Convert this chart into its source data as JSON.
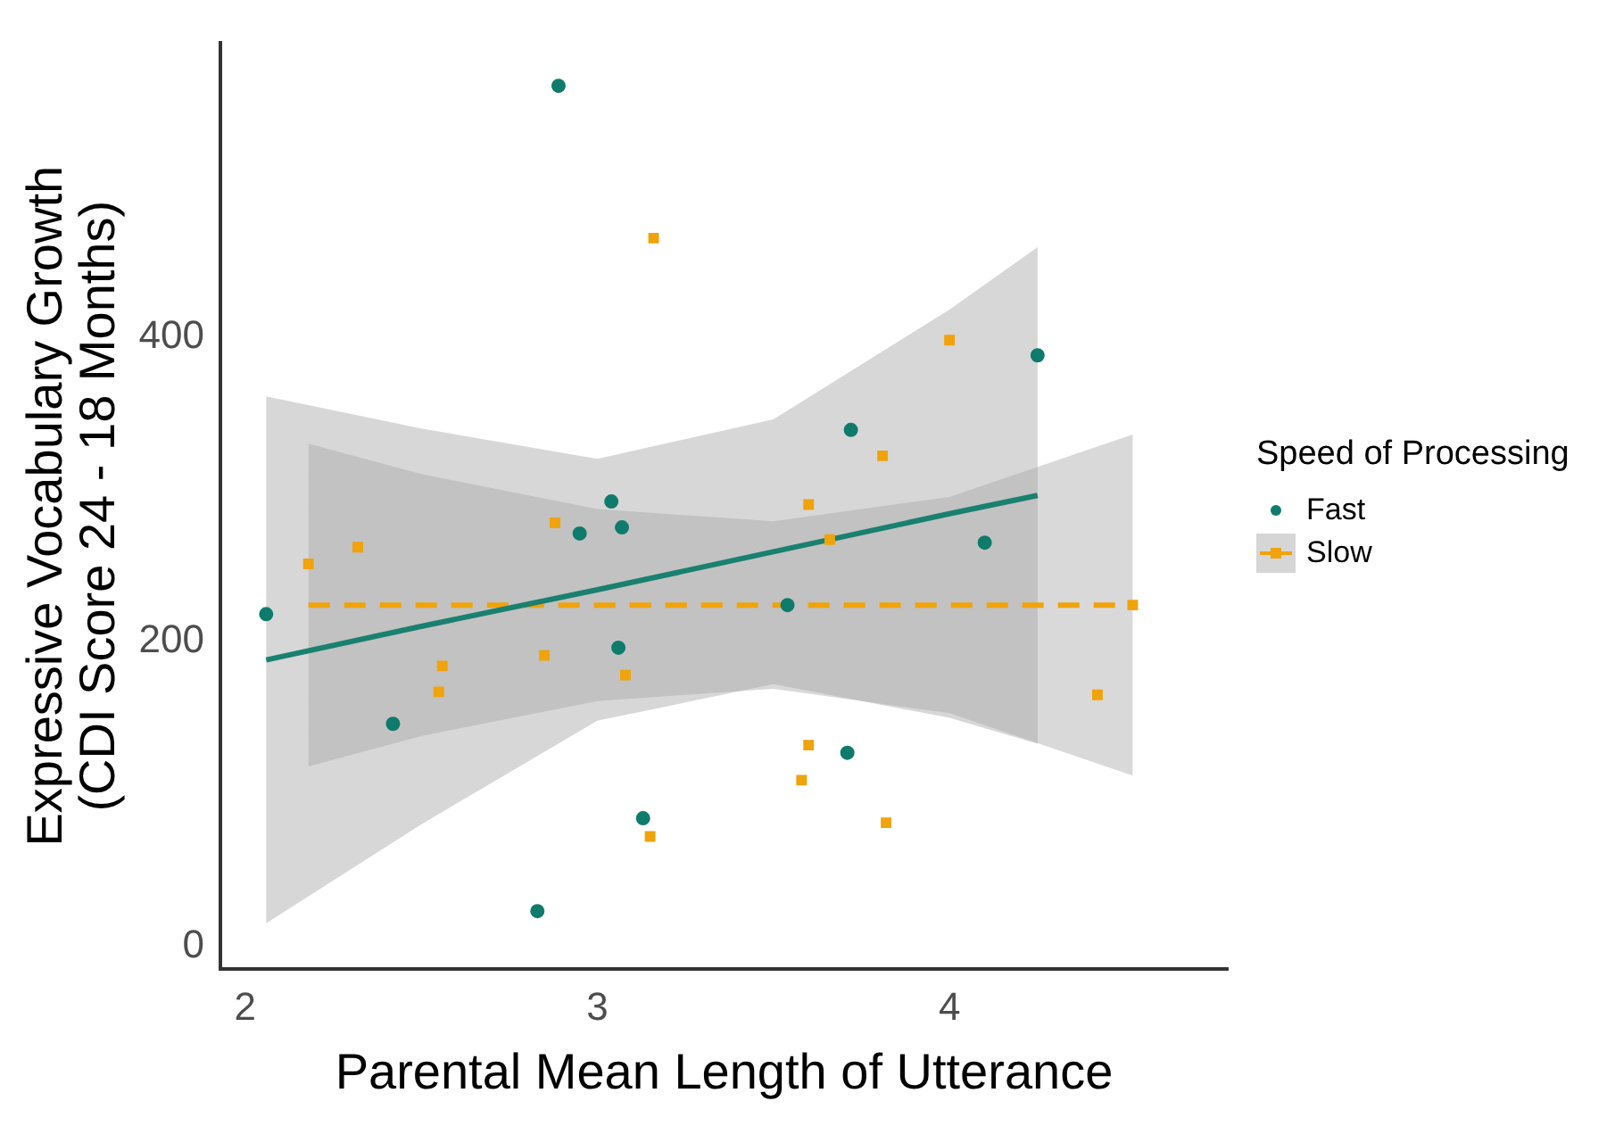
{
  "chart_data": {
    "type": "scatter",
    "xlabel": "Parental Mean Length of Utterance",
    "ylabel": "Expressive Vocabulary Growth\n(CDI Score 24 - 18 Months)",
    "legend_title": "Speed of Processing",
    "legend": "right",
    "grid": false,
    "xlim": [
      1.93,
      4.79
    ],
    "xticks": [
      2,
      3,
      4
    ],
    "ylim": [
      -15,
      593
    ],
    "yticks": [
      0,
      200,
      400
    ],
    "series": [
      {
        "type": "line",
        "color": "#1a8070",
        "line_style": "solid",
        "marker": "none",
        "x": [
          2.06,
          2.5,
          3.0,
          3.5,
          4.0,
          4.25
        ],
        "values": [
          188,
          210,
          234,
          259,
          284,
          296
        ],
        "lower": [
          15,
          80,
          148,
          172,
          150,
          133
        ],
        "upper": [
          361,
          340,
          320,
          346,
          418,
          459
        ]
      },
      {
        "type": "line",
        "color": "#f0a30a",
        "line_style": "dashed",
        "marker": "none",
        "x": [
          2.18,
          2.5,
          3.0,
          3.5,
          4.0,
          4.52
        ],
        "values": [
          224,
          224,
          224,
          224,
          224,
          224
        ],
        "lower": [
          118,
          138,
          161,
          169,
          153,
          112
        ],
        "upper": [
          330,
          310,
          287,
          279,
          295,
          336
        ]
      },
      {
        "name": "Fast",
        "type": "scatter",
        "color": "#0f7b6c",
        "marker": "circle",
        "x": [
          2.89,
          3.04,
          3.07,
          2.95,
          2.06,
          3.06,
          2.42,
          3.13,
          2.83,
          3.72,
          4.25,
          4.1,
          3.54,
          3.71
        ],
        "values": [
          565,
          292,
          275,
          271,
          218,
          196,
          146,
          84,
          23,
          339,
          388,
          265,
          224,
          127
        ]
      },
      {
        "name": "Slow",
        "type": "scatter",
        "color": "#f0a30a",
        "marker": "square",
        "x": [
          3.16,
          2.88,
          2.18,
          2.32,
          2.56,
          2.55,
          2.85,
          3.08,
          3.15,
          4.0,
          3.81,
          3.6,
          3.66,
          4.52,
          4.42,
          3.6,
          3.58,
          3.82
        ],
        "values": [
          465,
          278,
          251,
          262,
          184,
          167,
          191,
          178,
          72,
          398,
          322,
          290,
          267,
          224,
          165,
          132,
          109,
          81
        ]
      }
    ]
  }
}
